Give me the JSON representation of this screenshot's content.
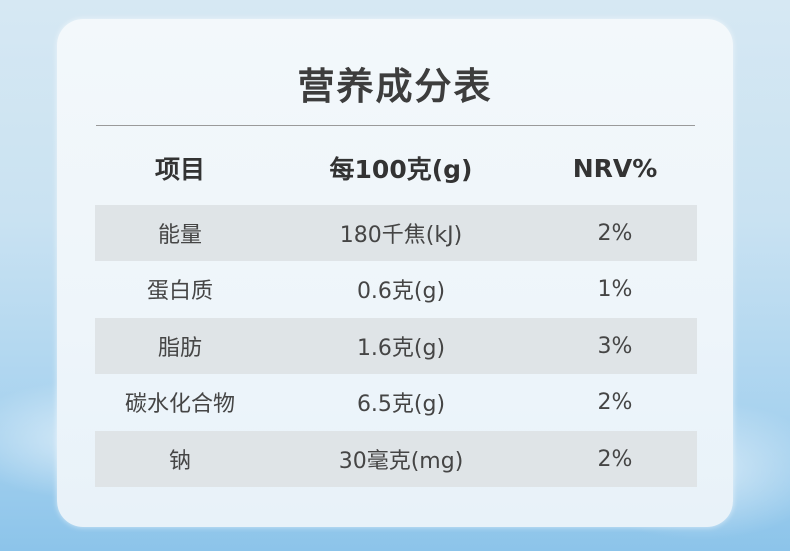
{
  "title": "营养成分表",
  "header": [
    "项目",
    "每100克(g)",
    "NRV%"
  ],
  "rows": [
    [
      "能量",
      "180千焦(kJ)",
      "2%"
    ],
    [
      "蛋白质",
      "0.6克(g)",
      "1%"
    ],
    [
      "脂肪",
      "1.6克(g)",
      "3%"
    ],
    [
      "碳水化合物",
      "6.5克(g)",
      "2%"
    ],
    [
      "钠",
      "30毫克(mg)",
      "2%"
    ]
  ]
}
